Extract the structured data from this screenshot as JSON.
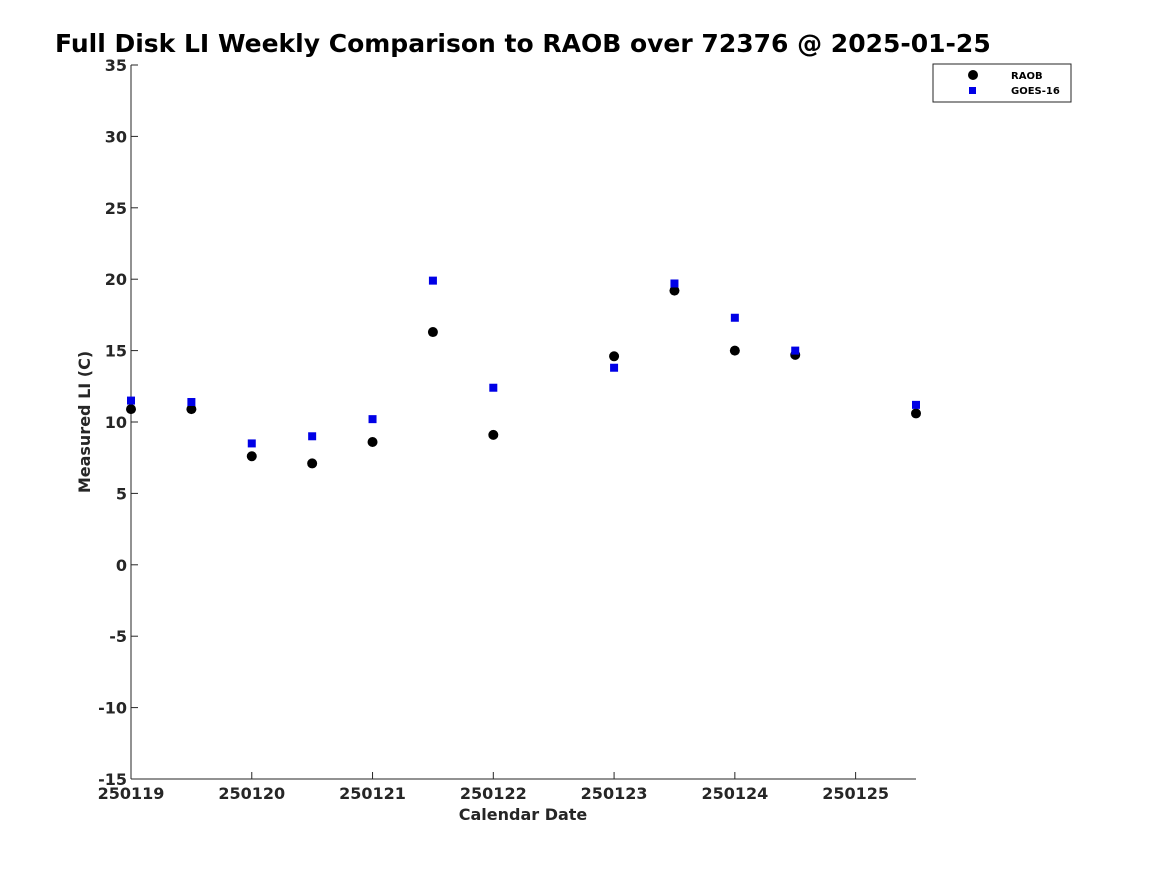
{
  "chart_data": {
    "type": "scatter",
    "title": "Full Disk LI Weekly Comparison to RAOB over 72376 @ 2025-01-25",
    "xlabel": "Calendar Date",
    "ylabel": "Measured LI (C)",
    "xlim": [
      250119,
      250125.5
    ],
    "ylim": [
      -15,
      35
    ],
    "xticks": [
      {
        "value": 250119,
        "label": "250119"
      },
      {
        "value": 250120,
        "label": "250120"
      },
      {
        "value": 250121,
        "label": "250121"
      },
      {
        "value": 250122,
        "label": "250122"
      },
      {
        "value": 250123,
        "label": "250123"
      },
      {
        "value": 250124,
        "label": "250124"
      },
      {
        "value": 250125,
        "label": "250125"
      }
    ],
    "yticks": [
      {
        "value": 35,
        "label": "35"
      },
      {
        "value": 30,
        "label": "30"
      },
      {
        "value": 25,
        "label": "25"
      },
      {
        "value": 20,
        "label": "20"
      },
      {
        "value": 15,
        "label": "15"
      },
      {
        "value": 10,
        "label": "10"
      },
      {
        "value": 5,
        "label": "5"
      },
      {
        "value": 0,
        "label": "0"
      },
      {
        "value": -5,
        "label": "-5"
      },
      {
        "value": -10,
        "label": "-10"
      },
      {
        "value": -15,
        "label": "-15"
      }
    ],
    "grid": false,
    "legend_position": "top-right",
    "series": [
      {
        "name": "RAOB",
        "marker": "circle",
        "color": "#000000",
        "x": [
          250119,
          250119.5,
          250120,
          250120.5,
          250121,
          250121.5,
          250122,
          250123,
          250123.5,
          250124,
          250124.5,
          250125.5
        ],
        "y": [
          10.9,
          10.9,
          7.6,
          7.1,
          8.6,
          16.3,
          9.1,
          14.6,
          19.2,
          15.0,
          14.7,
          10.6
        ]
      },
      {
        "name": "GOES-16",
        "marker": "square",
        "color": "#0000e6",
        "x": [
          250119,
          250119.5,
          250120,
          250120.5,
          250121,
          250121.5,
          250122,
          250123,
          250123.5,
          250124,
          250124.5,
          250125.5
        ],
        "y": [
          11.5,
          11.4,
          8.5,
          9.0,
          10.2,
          19.9,
          12.4,
          13.8,
          19.7,
          17.3,
          15.0,
          11.2
        ]
      }
    ]
  }
}
